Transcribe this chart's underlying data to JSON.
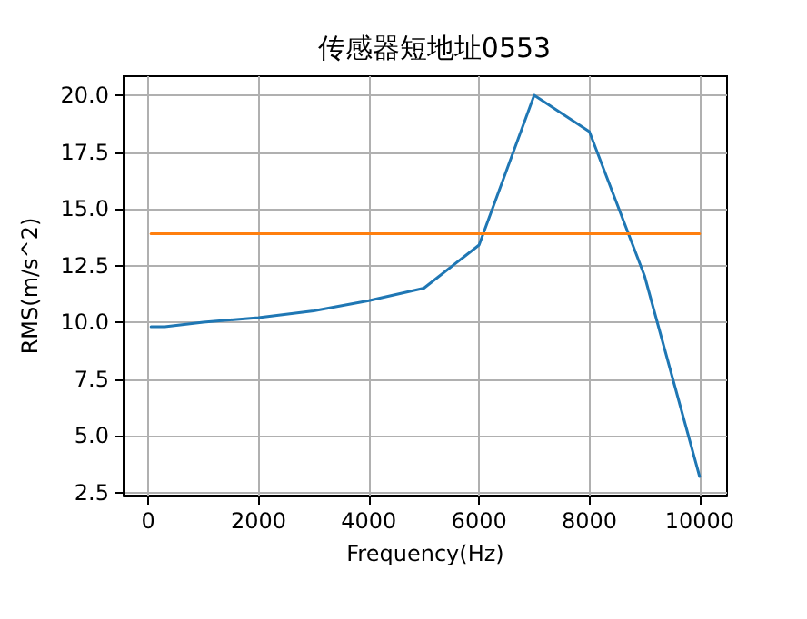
{
  "chart_data": {
    "type": "line",
    "title": "传感器短地址0553",
    "xlabel": "Frequency(Hz)",
    "ylabel": "RMS(m/s^2)",
    "series": [
      {
        "color": "#1f77b4",
        "x": [
          50,
          300,
          1000,
          2000,
          3000,
          4000,
          5000,
          6000,
          7000,
          8000,
          9000,
          10000
        ],
        "values": [
          9.8,
          9.8,
          10.0,
          10.2,
          10.5,
          10.95,
          11.5,
          13.4,
          20.0,
          18.4,
          12.05,
          3.2
        ]
      },
      {
        "color": "#ff7f0e",
        "x": [
          50,
          10000
        ],
        "values": [
          13.9,
          13.9
        ]
      }
    ],
    "xlim": [
      -447.5,
      10497.5
    ],
    "xticks": [
      0,
      2000,
      4000,
      6000,
      8000,
      10000
    ],
    "ylim": [
      2.36,
      20.84
    ],
    "yticks": [
      {
        "value": 2.5,
        "label": "2.5"
      },
      {
        "value": 5,
        "label": "5.0"
      },
      {
        "value": 7.5,
        "label": "7.5"
      },
      {
        "value": 10,
        "label": "10.0"
      },
      {
        "value": 12.5,
        "label": "12.5"
      },
      {
        "value": 15,
        "label": "15.0"
      },
      {
        "value": 17.5,
        "label": "17.5"
      },
      {
        "value": 20,
        "label": "20.0"
      }
    ],
    "grid": true,
    "marker": "none",
    "line_style": "solid"
  }
}
